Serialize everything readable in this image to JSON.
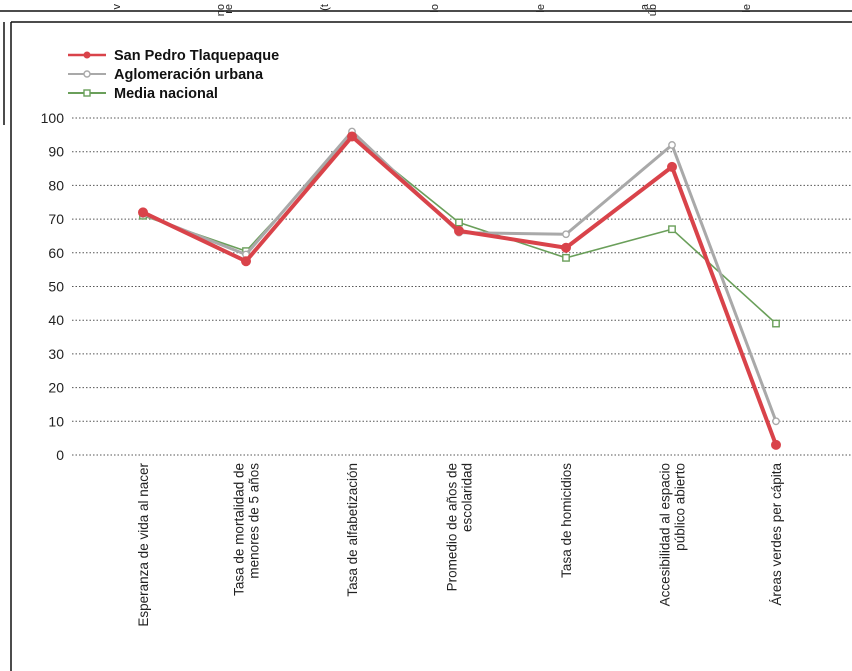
{
  "chart_data": {
    "type": "line",
    "categories": [
      [
        "Esperanza de vida al nacer"
      ],
      [
        "Tasa de mortalidad de",
        "menores de 5 años"
      ],
      [
        "Tasa de alfabetización"
      ],
      [
        "Promedio de años de",
        "escolaridad"
      ],
      [
        "Tasa de homicidios"
      ],
      [
        "Accesibilidad al espacio",
        "público abierto"
      ],
      [
        "Áreas verdes per cápita"
      ]
    ],
    "series": [
      {
        "name": "San Pedro Tlaquepaque",
        "color": "#d9434a",
        "marker": "filled-circle",
        "values": [
          72,
          57.5,
          94.5,
          66.5,
          61.5,
          85.5,
          3
        ]
      },
      {
        "name": "Aglomeración urbana",
        "color": "#a9a9a9",
        "marker": "open-circle",
        "values": [
          71.5,
          59.5,
          96,
          66,
          65.5,
          92,
          10
        ]
      },
      {
        "name": "Media nacional",
        "color": "#6a9f5a",
        "marker": "open-square",
        "values": [
          71,
          60.5,
          94.5,
          69,
          58.5,
          67,
          39
        ]
      }
    ],
    "ylim": [
      0,
      100
    ],
    "yticks": [
      0,
      10,
      20,
      30,
      40,
      50,
      60,
      70,
      80,
      90,
      100
    ],
    "grid": "horizontal-dotted",
    "legend_position": "top-left"
  },
  "cut_off_labels": [
    "v",
    "no",
    "re",
    "(t",
    "lo",
    "le",
    "a",
    "úb",
    "le"
  ]
}
